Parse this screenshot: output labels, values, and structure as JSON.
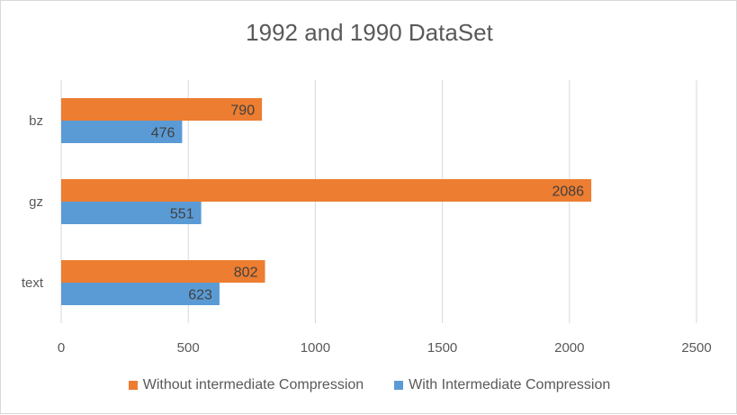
{
  "chart_data": {
    "type": "bar",
    "orientation": "horizontal",
    "title": "1992 and 1990 DataSet",
    "categories": [
      "bz",
      "gz",
      "text"
    ],
    "series": [
      {
        "name": "Without intermediate Compression",
        "color": "#ED7D31",
        "values": [
          790,
          2086,
          802
        ]
      },
      {
        "name": "With Intermediate Compression",
        "color": "#5B9BD5",
        "values": [
          476,
          551,
          623
        ]
      }
    ],
    "xlim": [
      0,
      2500
    ],
    "xticks": [
      0,
      500,
      1000,
      1500,
      2000,
      2500
    ],
    "grid": true,
    "legend_position": "bottom"
  }
}
